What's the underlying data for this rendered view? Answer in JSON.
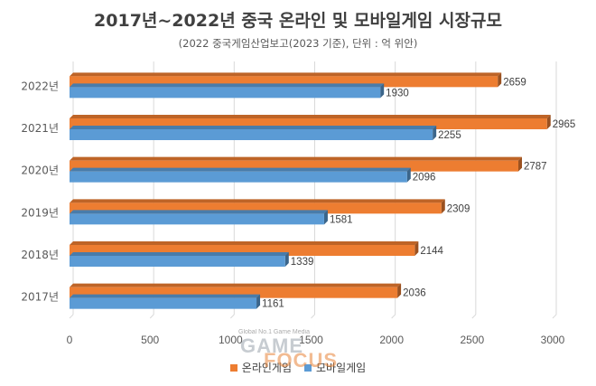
{
  "chart_data": {
    "type": "bar",
    "orientation": "horizontal",
    "title": "2017년~2022년 중국 온라인 및 모바일게임 시장규모",
    "subtitle": "(2022 중국게임산업보고(2023 기준), 단위 : 억 위안)",
    "categories": [
      "2022년",
      "2021년",
      "2020년",
      "2019년",
      "2018년",
      "2017년"
    ],
    "series": [
      {
        "name": "온라인게임",
        "color": "#ED7D31",
        "values": [
          2659,
          2965,
          2787,
          2309,
          2144,
          2036
        ]
      },
      {
        "name": "모바일게임",
        "color": "#5B9BD5",
        "values": [
          1930,
          2255,
          2096,
          1581,
          1339,
          1161
        ]
      }
    ],
    "xlim": [
      0,
      3000
    ],
    "xticks": [
      0,
      500,
      1000,
      1500,
      2000,
      2500,
      3000
    ],
    "grid": true,
    "legend_position": "bottom"
  },
  "watermark": {
    "tagline": "Global No.1 Game Media",
    "word1": "GAME",
    "word2": "FOCUS"
  }
}
